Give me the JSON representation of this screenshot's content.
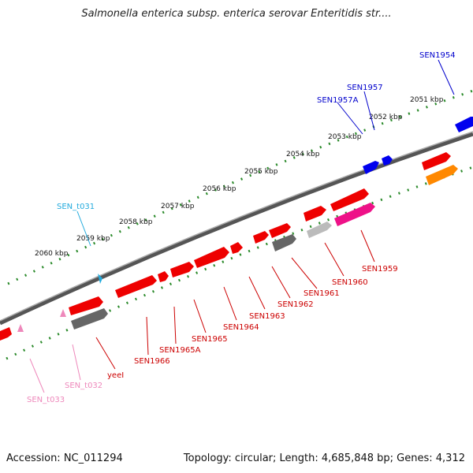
{
  "title": "Salmonella enterica subsp. enterica serovar Enteritidis str....",
  "footer": {
    "accession": "Accession: NC_011294",
    "topology": "Topology: circular; Length: 4,685,848 bp; Genes: 4,312"
  },
  "ticks": [
    "2051 kbp",
    "2052 kbp",
    "2053 kbp",
    "2054 kbp",
    "2055 kbp",
    "2056 kbp",
    "2057 kbp",
    "2058 kbp",
    "2059 kbp",
    "2060 kbp"
  ],
  "genes": [
    {
      "label": "SEN1954",
      "color": "#0000cc"
    },
    {
      "label": "SEN1957",
      "color": "#0000cc"
    },
    {
      "label": "SEN1957A",
      "color": "#0000cc"
    },
    {
      "label": "SEN_t031",
      "color": "#22aadd"
    },
    {
      "label": "SEN1959",
      "color": "#cc0000"
    },
    {
      "label": "SEN1960",
      "color": "#cc0000"
    },
    {
      "label": "SEN1961",
      "color": "#cc0000"
    },
    {
      "label": "SEN1962",
      "color": "#cc0000"
    },
    {
      "label": "SEN1963",
      "color": "#cc0000"
    },
    {
      "label": "SEN1964",
      "color": "#cc0000"
    },
    {
      "label": "SEN1965",
      "color": "#cc0000"
    },
    {
      "label": "SEN1965A",
      "color": "#cc0000"
    },
    {
      "label": "SEN1966",
      "color": "#cc0000"
    },
    {
      "label": "yeeI",
      "color": "#cc0000"
    },
    {
      "label": "SEN_t032",
      "color": "#ee88bb"
    },
    {
      "label": "SEN_t033",
      "color": "#ee88bb"
    }
  ]
}
